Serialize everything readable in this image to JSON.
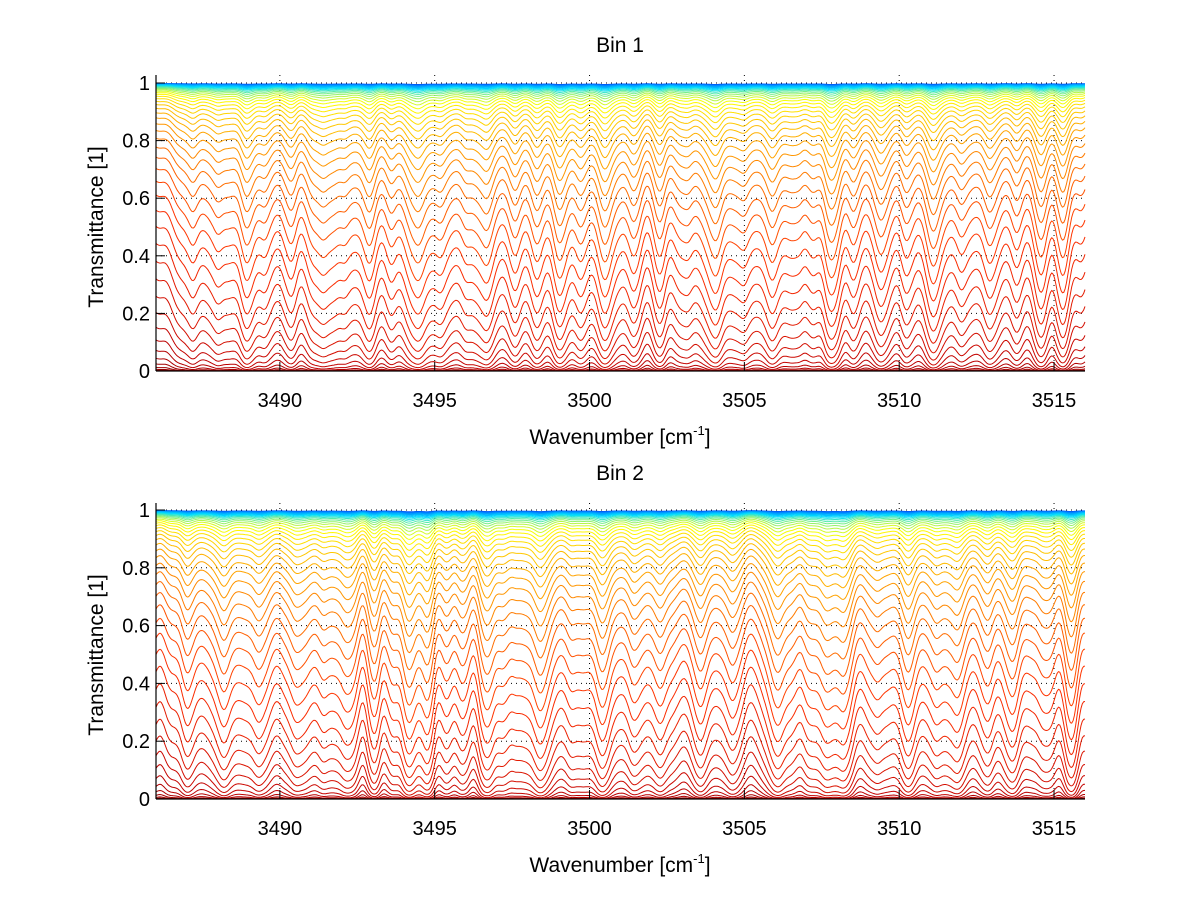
{
  "chart_data": [
    {
      "type": "line",
      "title": "Bin 1",
      "xlabel": "Wavenumber [cm",
      "xlabel_superscript": "-1",
      "xlabel_suffix": "]",
      "ylabel": "Transmittance [1]",
      "xlim": [
        3486,
        3516
      ],
      "ylim": [
        0,
        1
      ],
      "xticks": [
        3490,
        3495,
        3500,
        3505,
        3510,
        3515
      ],
      "xtick_labels": [
        "3490",
        "3495",
        "3500",
        "3505",
        "3510",
        "3515"
      ],
      "yticks": [
        0,
        0.2,
        0.4,
        0.6,
        0.8,
        1
      ],
      "ytick_labels": [
        "0",
        "0.2",
        "0.4",
        "0.6",
        "0.8",
        "1"
      ],
      "grid": "dotted",
      "legend": "none",
      "colormap": [
        "#00008f",
        "#0060ff",
        "#00dfff",
        "#ffff00",
        "#ff9f00",
        "#ff3000",
        "#c00000",
        "#800000"
      ],
      "series_count": 60,
      "series_description": "Family of transmittance spectra for increasing optical path; least absorbing (blue) near 1, most absorbing (dark red) near 0",
      "absorption_lines": [
        {
          "center": 3487.2,
          "strength": 0.9
        },
        {
          "center": 3488.0,
          "strength": 1.0
        },
        {
          "center": 3488.9,
          "strength": 1.6
        },
        {
          "center": 3489.5,
          "strength": 0.9
        },
        {
          "center": 3490.4,
          "strength": 1.0
        },
        {
          "center": 3491.4,
          "strength": 1.8
        },
        {
          "center": 3492.1,
          "strength": 1.1
        },
        {
          "center": 3492.9,
          "strength": 1.3
        },
        {
          "center": 3493.6,
          "strength": 1.0
        },
        {
          "center": 3494.5,
          "strength": 2.4
        },
        {
          "center": 3495.2,
          "strength": 1.1
        },
        {
          "center": 3496.0,
          "strength": 1.0
        },
        {
          "center": 3496.7,
          "strength": 1.7
        },
        {
          "center": 3497.6,
          "strength": 1.1
        },
        {
          "center": 3498.3,
          "strength": 1.0
        },
        {
          "center": 3499.0,
          "strength": 2.0
        },
        {
          "center": 3499.7,
          "strength": 1.0
        },
        {
          "center": 3500.5,
          "strength": 2.2
        },
        {
          "center": 3501.4,
          "strength": 1.1
        },
        {
          "center": 3502.3,
          "strength": 1.3
        },
        {
          "center": 3503.2,
          "strength": 1.0
        },
        {
          "center": 3504.1,
          "strength": 2.3
        },
        {
          "center": 3505.0,
          "strength": 1.0
        },
        {
          "center": 3505.9,
          "strength": 1.8
        },
        {
          "center": 3506.8,
          "strength": 0.9
        },
        {
          "center": 3507.7,
          "strength": 2.1
        },
        {
          "center": 3508.5,
          "strength": 1.0
        },
        {
          "center": 3509.4,
          "strength": 1.2
        },
        {
          "center": 3510.2,
          "strength": 0.9
        },
        {
          "center": 3511.1,
          "strength": 1.7
        },
        {
          "center": 3512.0,
          "strength": 1.0
        },
        {
          "center": 3512.9,
          "strength": 1.1
        },
        {
          "center": 3513.8,
          "strength": 0.9
        },
        {
          "center": 3514.6,
          "strength": 1.0
        },
        {
          "center": 3515.3,
          "strength": 1.6
        }
      ]
    },
    {
      "type": "line",
      "title": "Bin 2",
      "xlabel": "Wavenumber [cm",
      "xlabel_superscript": "-1",
      "xlabel_suffix": "]",
      "ylabel": "Transmittance [1]",
      "xlim": [
        3486,
        3516
      ],
      "ylim": [
        0,
        1
      ],
      "xticks": [
        3490,
        3495,
        3500,
        3505,
        3510,
        3515
      ],
      "xtick_labels": [
        "3490",
        "3495",
        "3500",
        "3505",
        "3510",
        "3515"
      ],
      "yticks": [
        0,
        0.2,
        0.4,
        0.6,
        0.8,
        1
      ],
      "ytick_labels": [
        "0",
        "0.2",
        "0.4",
        "0.6",
        "0.8",
        "1"
      ],
      "grid": "dotted",
      "legend": "none",
      "colormap": [
        "#00008f",
        "#0060ff",
        "#00dfff",
        "#ffff00",
        "#ff9f00",
        "#ff3000",
        "#c00000",
        "#800000"
      ],
      "series_count": 60,
      "series_description": "Family of transmittance spectra for increasing optical path; least absorbing (blue) near 1, most absorbing (dark red) near 0",
      "absorption_lines": [
        {
          "center": 3487.0,
          "strength": 1.0
        },
        {
          "center": 3488.2,
          "strength": 1.8
        },
        {
          "center": 3489.3,
          "strength": 1.5
        },
        {
          "center": 3490.5,
          "strength": 1.5
        },
        {
          "center": 3491.4,
          "strength": 1.1
        },
        {
          "center": 3492.1,
          "strength": 1.6
        },
        {
          "center": 3493.1,
          "strength": 1.2
        },
        {
          "center": 3494.1,
          "strength": 2.4
        },
        {
          "center": 3494.8,
          "strength": 1.9
        },
        {
          "center": 3495.8,
          "strength": 1.1
        },
        {
          "center": 3496.8,
          "strength": 2.0
        },
        {
          "center": 3497.6,
          "strength": 1.1
        },
        {
          "center": 3498.4,
          "strength": 2.0
        },
        {
          "center": 3499.4,
          "strength": 1.0
        },
        {
          "center": 3500.4,
          "strength": 2.0
        },
        {
          "center": 3501.4,
          "strength": 1.2
        },
        {
          "center": 3502.3,
          "strength": 1.5
        },
        {
          "center": 3503.6,
          "strength": 1.4
        },
        {
          "center": 3504.6,
          "strength": 1.1
        },
        {
          "center": 3506.1,
          "strength": 2.1
        },
        {
          "center": 3507.0,
          "strength": 1.1
        },
        {
          "center": 3507.6,
          "strength": 1.6
        },
        {
          "center": 3508.2,
          "strength": 2.0
        },
        {
          "center": 3509.3,
          "strength": 1.1
        },
        {
          "center": 3510.3,
          "strength": 2.0
        },
        {
          "center": 3511.2,
          "strength": 1.2
        },
        {
          "center": 3511.9,
          "strength": 1.6
        },
        {
          "center": 3512.9,
          "strength": 1.2
        },
        {
          "center": 3513.7,
          "strength": 1.4
        },
        {
          "center": 3514.6,
          "strength": 1.1
        },
        {
          "center": 3515.6,
          "strength": 1.9
        }
      ]
    }
  ]
}
